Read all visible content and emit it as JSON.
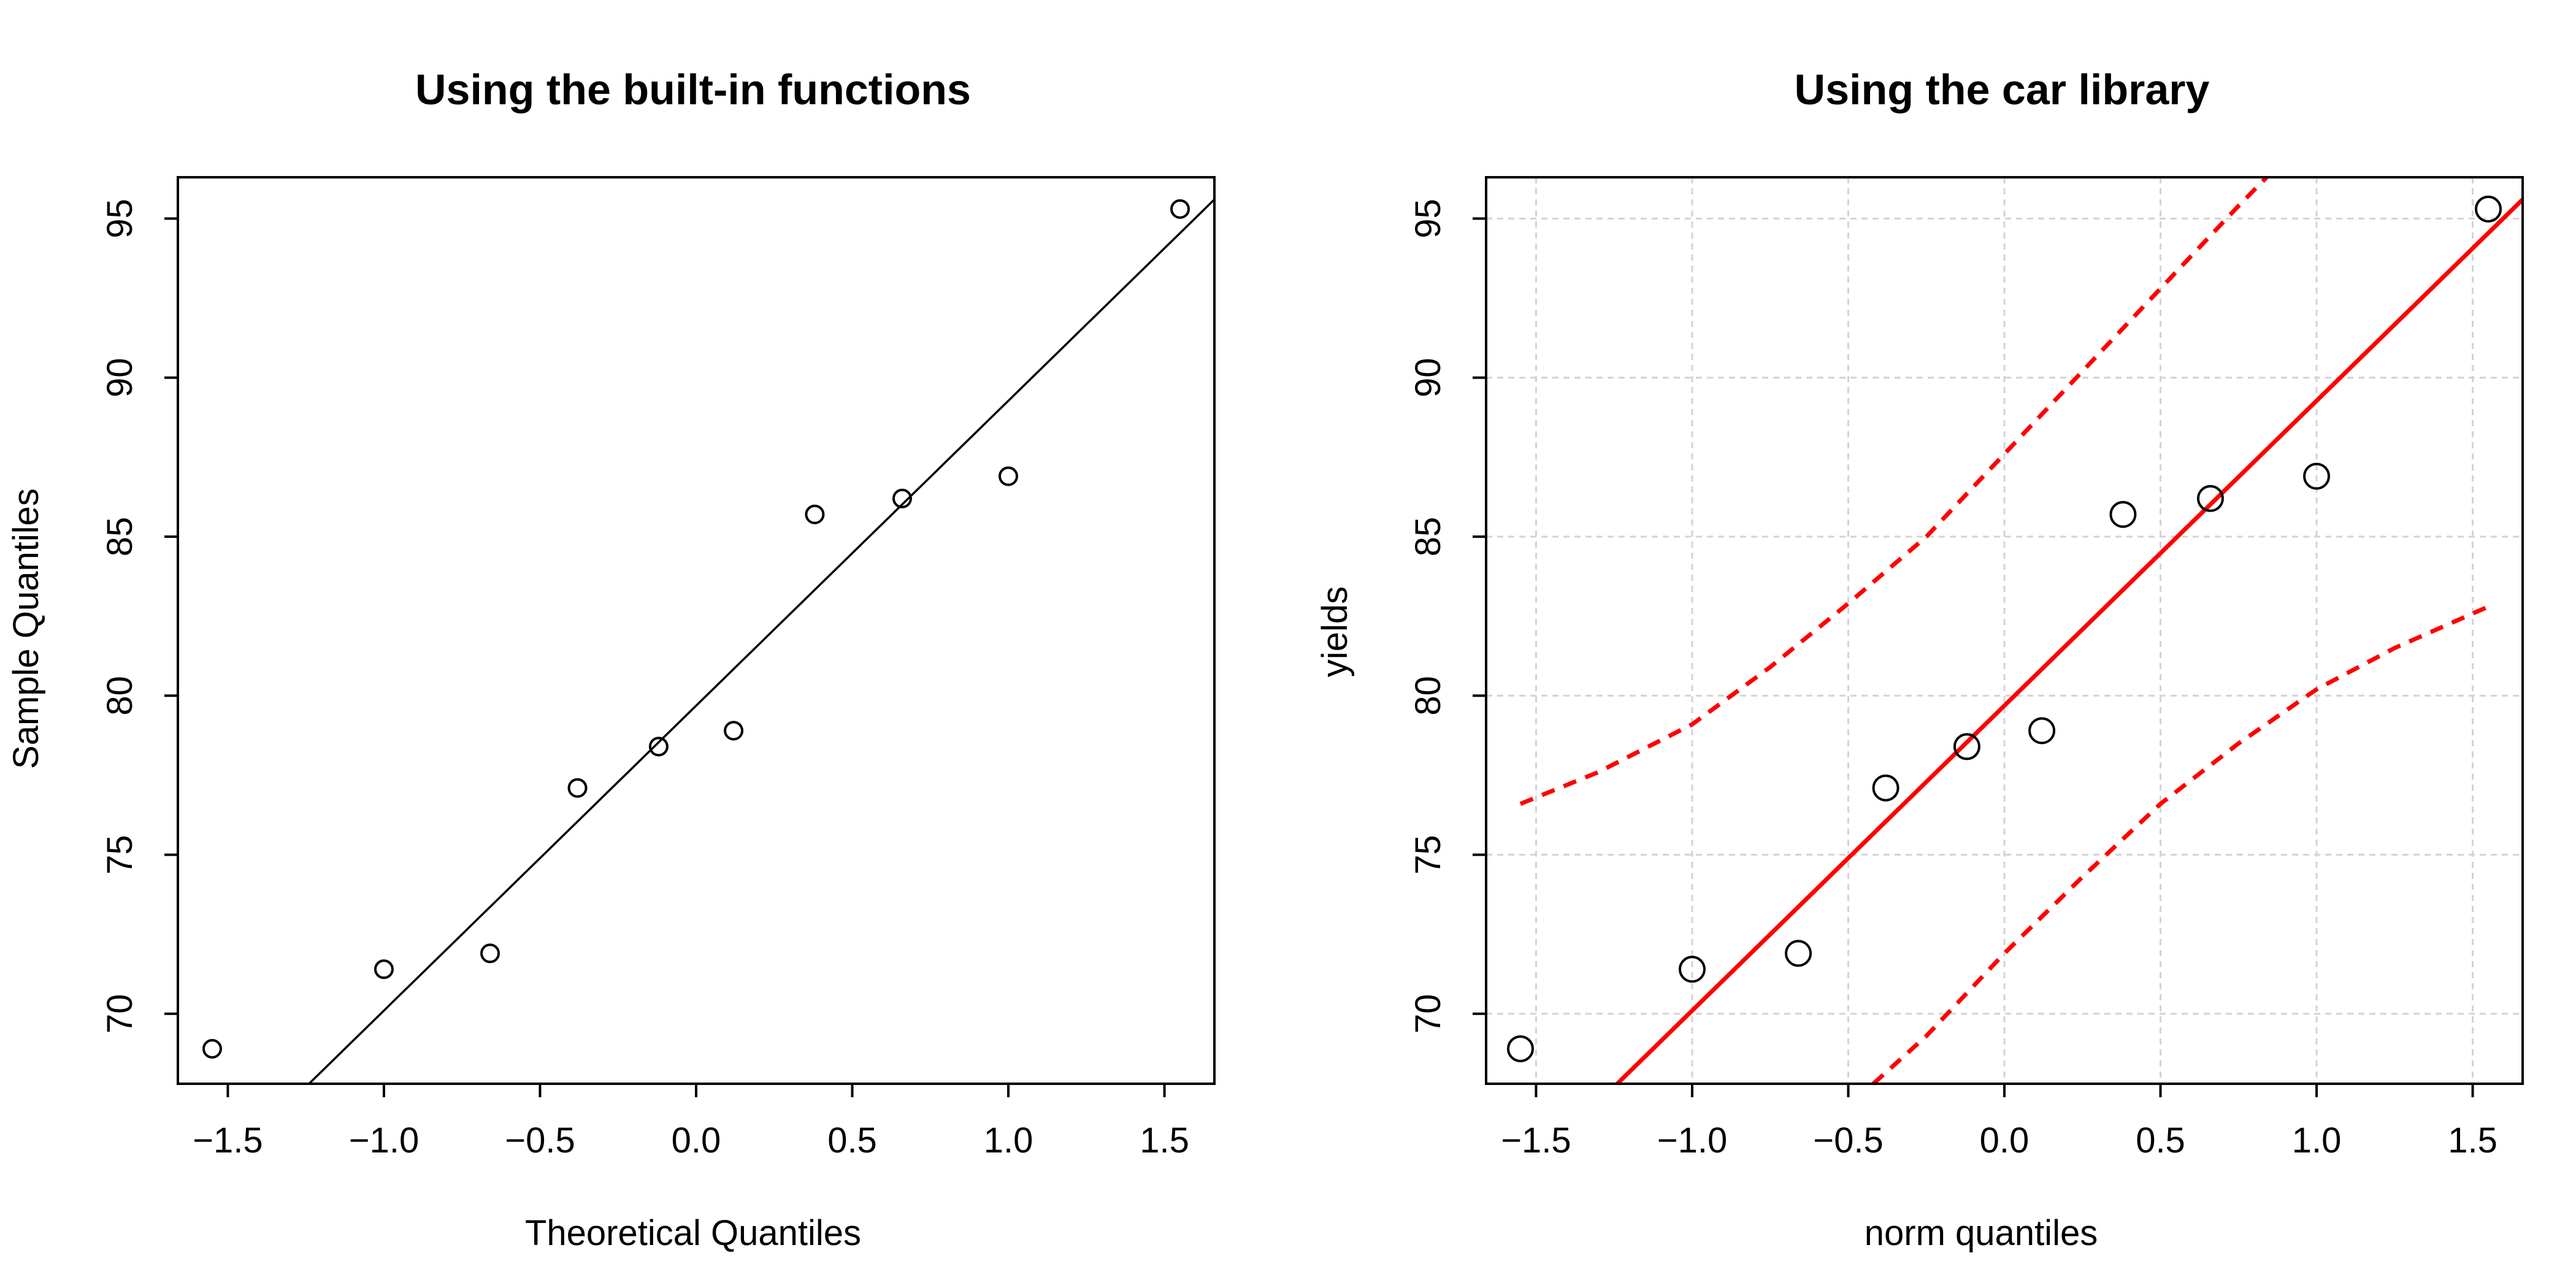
{
  "chart_data": [
    {
      "type": "scatter",
      "title": "Using the built-in functions",
      "xlabel": "Theoretical Quantiles",
      "ylabel": "Sample Quantiles",
      "xlim": [
        -1.66,
        1.66
      ],
      "ylim": [
        67.8,
        96.3
      ],
      "xticks": [
        -1.5,
        -1.0,
        -0.5,
        0.0,
        0.5,
        1.0,
        1.5
      ],
      "xtick_labels": [
        "−1.5",
        "−1.0",
        "−0.5",
        "0.0",
        "0.5",
        "1.0",
        "1.5"
      ],
      "yticks": [
        70,
        75,
        80,
        85,
        90,
        95
      ],
      "ytick_labels": [
        "70",
        "75",
        "80",
        "85",
        "90",
        "95"
      ],
      "grid": false,
      "x": [
        -1.55,
        -1.0,
        -0.66,
        -0.38,
        -0.12,
        0.12,
        0.38,
        0.66,
        1.0,
        1.55
      ],
      "y": [
        68.9,
        71.4,
        71.9,
        77.1,
        78.4,
        78.9,
        85.7,
        86.2,
        86.9,
        95.3
      ],
      "reference_line": {
        "x": [
          -1.24,
          1.66
        ],
        "y": [
          67.8,
          95.6
        ]
      },
      "colors": {
        "points": "#000000",
        "line": "#000000"
      }
    },
    {
      "type": "scatter",
      "title": "Using the car library",
      "xlabel": "norm quantiles",
      "ylabel": "yields",
      "xlim": [
        -1.66,
        1.66
      ],
      "ylim": [
        67.8,
        96.3
      ],
      "xticks": [
        -1.5,
        -1.0,
        -0.5,
        0.0,
        0.5,
        1.0,
        1.5
      ],
      "xtick_labels": [
        "−1.5",
        "−1.0",
        "−0.5",
        "0.0",
        "0.5",
        "1.0",
        "1.5"
      ],
      "yticks": [
        70,
        75,
        80,
        85,
        90,
        95
      ],
      "ytick_labels": [
        "70",
        "75",
        "80",
        "85",
        "90",
        "95"
      ],
      "grid": true,
      "x": [
        -1.55,
        -1.0,
        -0.66,
        -0.38,
        -0.12,
        0.12,
        0.38,
        0.66,
        1.0,
        1.55
      ],
      "y": [
        68.9,
        71.4,
        71.9,
        77.1,
        78.4,
        78.9,
        85.7,
        86.2,
        86.9,
        95.3
      ],
      "reference_line": {
        "x": [
          -1.24,
          1.66
        ],
        "y": [
          67.8,
          95.6
        ]
      },
      "confidence_upper": {
        "x": [
          -1.55,
          -1.3,
          -1.0,
          -0.75,
          -0.5,
          -0.25,
          0.0,
          0.25,
          0.5,
          0.75,
          0.84
        ],
        "y": [
          76.6,
          77.6,
          79.1,
          80.9,
          82.9,
          85.0,
          87.6,
          90.2,
          92.8,
          95.4,
          96.3
        ]
      },
      "confidence_lower": {
        "x": [
          -0.42,
          -0.25,
          0.0,
          0.25,
          0.5,
          0.75,
          1.0,
          1.25,
          1.55
        ],
        "y": [
          67.8,
          69.3,
          71.9,
          74.3,
          76.6,
          78.5,
          80.2,
          81.5,
          82.8
        ]
      },
      "colors": {
        "points": "#000000",
        "line": "#ff0000",
        "grid": "#d3d3d3"
      }
    }
  ]
}
